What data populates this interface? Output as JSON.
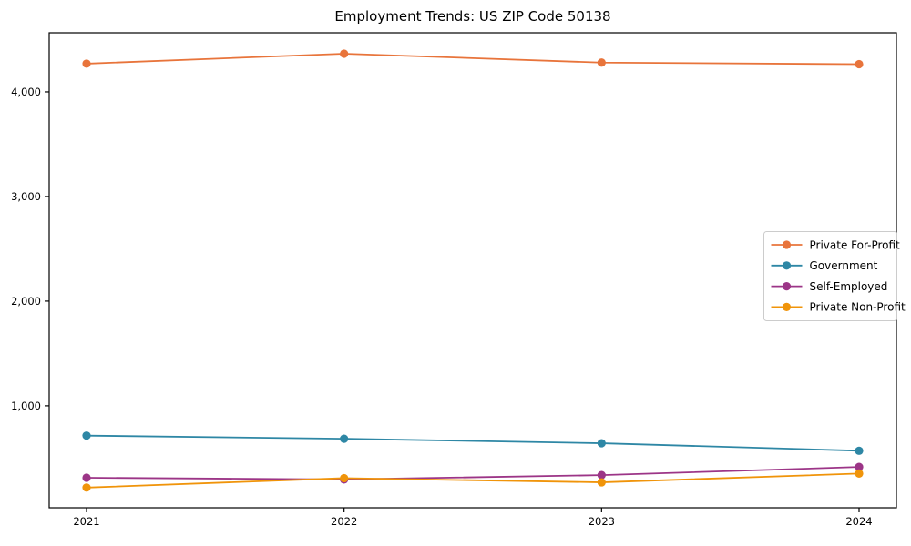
{
  "figure": {
    "title": "Employment Trends: US ZIP Code 50138"
  },
  "chart_data": {
    "type": "line",
    "title": "Employment Trends: US ZIP Code 50138",
    "xlabel": "",
    "ylabel": "",
    "grid": false,
    "x": [
      2021,
      2022,
      2023,
      2024
    ],
    "x_tick_labels": [
      "2021",
      "2022",
      "2023",
      "2024"
    ],
    "y_ticks": [
      {
        "value": 1000,
        "label": "1,000"
      },
      {
        "value": 2000,
        "label": "2,000"
      },
      {
        "value": 3000,
        "label": "3,000"
      },
      {
        "value": 4000,
        "label": "4,000"
      }
    ],
    "ylim": [
      25,
      4565
    ],
    "legend": {
      "position": "center-right",
      "border_color": "#cccccc",
      "background": "#ffffff"
    },
    "series": [
      {
        "name": "Private For-Profit",
        "color": "#e8743b",
        "values": [
          4270,
          4365,
          4280,
          4265
        ]
      },
      {
        "name": "Government",
        "color": "#2e87a5",
        "values": [
          715,
          685,
          642,
          570
        ]
      },
      {
        "name": "Self-Employed",
        "color": "#9c3587",
        "values": [
          312,
          296,
          337,
          415
        ]
      },
      {
        "name": "Private Non-Profit",
        "color": "#f0940a",
        "values": [
          218,
          308,
          268,
          352
        ]
      }
    ],
    "colors": {
      "spine": "#000000",
      "text": "#000000"
    }
  }
}
